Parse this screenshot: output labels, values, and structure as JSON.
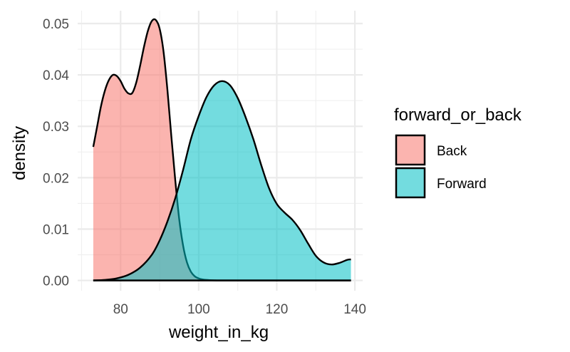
{
  "chart_data": {
    "type": "area",
    "title": "",
    "xlabel": "weight_in_kg",
    "ylabel": "density",
    "xlim": [
      69,
      142
    ],
    "ylim": [
      -0.002,
      0.0525
    ],
    "x_ticks": [
      80,
      100,
      120,
      140
    ],
    "x_tick_labels": [
      "80",
      "100",
      "120",
      "140"
    ],
    "y_ticks": [
      0,
      0.01,
      0.02,
      0.03,
      0.04,
      0.05
    ],
    "y_tick_labels": [
      "0.00",
      "0.01",
      "0.02",
      "0.03",
      "0.04",
      "0.05"
    ],
    "grid": true,
    "legend": {
      "title": "forward_or_back",
      "position": "right"
    },
    "series": [
      {
        "name": "Back",
        "color": "#F8766D",
        "x": [
          73,
          74,
          75,
          76,
          77,
          78,
          79,
          80,
          81,
          82,
          83,
          84,
          85,
          86,
          87,
          88,
          89,
          90,
          91,
          92,
          93,
          94,
          95,
          96,
          97,
          98,
          99,
          100,
          101,
          102,
          103,
          104,
          105,
          110,
          120,
          130,
          139
        ],
        "values": [
          0.026,
          0.03,
          0.034,
          0.037,
          0.039,
          0.04,
          0.0398,
          0.0388,
          0.0373,
          0.0364,
          0.0365,
          0.0385,
          0.0418,
          0.0455,
          0.0486,
          0.0505,
          0.0507,
          0.049,
          0.0445,
          0.037,
          0.028,
          0.0195,
          0.012,
          0.0068,
          0.0035,
          0.0017,
          0.0008,
          0.0004,
          0.0002,
          0.0001,
          5e-05,
          2e-05,
          0,
          0,
          0,
          0,
          0
        ]
      },
      {
        "name": "Forward",
        "color": "#00BFC4",
        "x": [
          73,
          76,
          79,
          82,
          85,
          88,
          90,
          92,
          94,
          96,
          98,
          100,
          102,
          104,
          106,
          108,
          110,
          112,
          114,
          116,
          118,
          120,
          122,
          124,
          126,
          128,
          130,
          132,
          134,
          136,
          138,
          139
        ],
        "values": [
          0.0,
          0.0001,
          0.0004,
          0.0011,
          0.0025,
          0.005,
          0.0078,
          0.0115,
          0.016,
          0.0215,
          0.0275,
          0.032,
          0.0357,
          0.038,
          0.0388,
          0.038,
          0.0355,
          0.0318,
          0.0275,
          0.0225,
          0.018,
          0.0149,
          0.0132,
          0.0118,
          0.0098,
          0.0072,
          0.0048,
          0.0035,
          0.0031,
          0.0034,
          0.004,
          0.0041
        ]
      }
    ]
  }
}
